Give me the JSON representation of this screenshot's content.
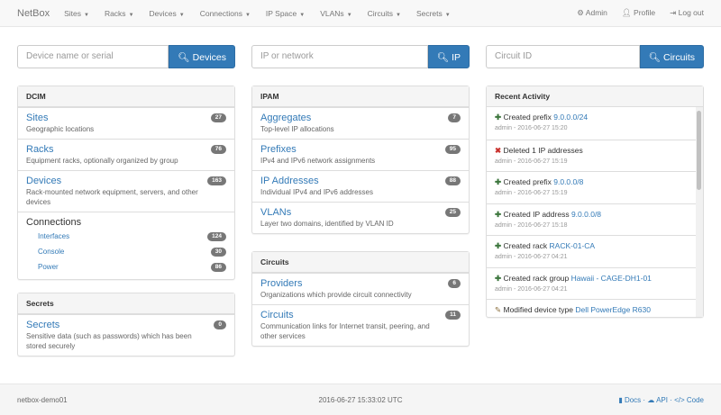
{
  "nav": {
    "brand": "NetBox",
    "menus": [
      "Sites",
      "Racks",
      "Devices",
      "Connections",
      "IP Space",
      "VLANs",
      "Circuits",
      "Secrets"
    ],
    "admin": "Admin",
    "profile": "Profile",
    "logout": "Log out"
  },
  "search": [
    {
      "placeholder": "Device name or serial",
      "button": "Devices"
    },
    {
      "placeholder": "IP or network",
      "button": "IP"
    },
    {
      "placeholder": "Circuit ID",
      "button": "Circuits"
    }
  ],
  "dcim": {
    "title": "DCIM",
    "items": [
      {
        "label": "Sites",
        "desc": "Geographic locations",
        "count": "27"
      },
      {
        "label": "Racks",
        "desc": "Equipment racks, optionally organized by group",
        "count": "76"
      },
      {
        "label": "Devices",
        "desc": "Rack-mounted network equipment, servers, and other devices",
        "count": "163"
      }
    ],
    "connections": {
      "label": "Connections",
      "items": [
        {
          "label": "Interfaces",
          "count": "124"
        },
        {
          "label": "Console",
          "count": "30"
        },
        {
          "label": "Power",
          "count": "86"
        }
      ]
    }
  },
  "secrets": {
    "title": "Secrets",
    "items": [
      {
        "label": "Secrets",
        "desc": "Sensitive data (such as passwords) which has been stored securely",
        "count": "0"
      }
    ]
  },
  "ipam": {
    "title": "IPAM",
    "items": [
      {
        "label": "Aggregates",
        "desc": "Top-level IP allocations",
        "count": "7"
      },
      {
        "label": "Prefixes",
        "desc": "IPv4 and IPv6 network assignments",
        "count": "95"
      },
      {
        "label": "IP Addresses",
        "desc": "Individual IPv4 and IPv6 addresses",
        "count": "88"
      },
      {
        "label": "VLANs",
        "desc": "Layer two domains, identified by VLAN ID",
        "count": "25"
      }
    ]
  },
  "circuits": {
    "title": "Circuits",
    "items": [
      {
        "label": "Providers",
        "desc": "Organizations which provide circuit connectivity",
        "count": "6"
      },
      {
        "label": "Circuits",
        "desc": "Communication links for Internet transit, peering, and other services",
        "count": "11"
      }
    ]
  },
  "activity": {
    "title": "Recent Activity",
    "events": [
      {
        "icon": "plus",
        "action": "Created prefix",
        "link": "9.0.0.0/24",
        "meta": "admin - 2016-06-27 15:20"
      },
      {
        "icon": "remove",
        "action": "Deleted 1 IP addresses",
        "link": "",
        "meta": "admin - 2016-06-27 15:19"
      },
      {
        "icon": "plus",
        "action": "Created prefix",
        "link": "9.0.0.0/8",
        "meta": "admin - 2016-06-27 15:19"
      },
      {
        "icon": "plus",
        "action": "Created IP address",
        "link": "9.0.0.0/8",
        "meta": "admin - 2016-06-27 15:18"
      },
      {
        "icon": "plus",
        "action": "Created rack",
        "link": "RACK-01-CA",
        "meta": "admin - 2016-06-27 04:21"
      },
      {
        "icon": "plus",
        "action": "Created rack group",
        "link": "Hawaii - CAGE-DH1-01",
        "meta": "admin - 2016-06-27 04:21"
      },
      {
        "icon": "pencil",
        "action": "Modified device type",
        "link": "Dell PowerEdge R630",
        "meta": ""
      }
    ]
  },
  "footer": {
    "host": "netbox-demo01",
    "time": "2016-06-27 15:33:02 UTC",
    "docs": "Docs",
    "api": "API",
    "code": "Code"
  }
}
